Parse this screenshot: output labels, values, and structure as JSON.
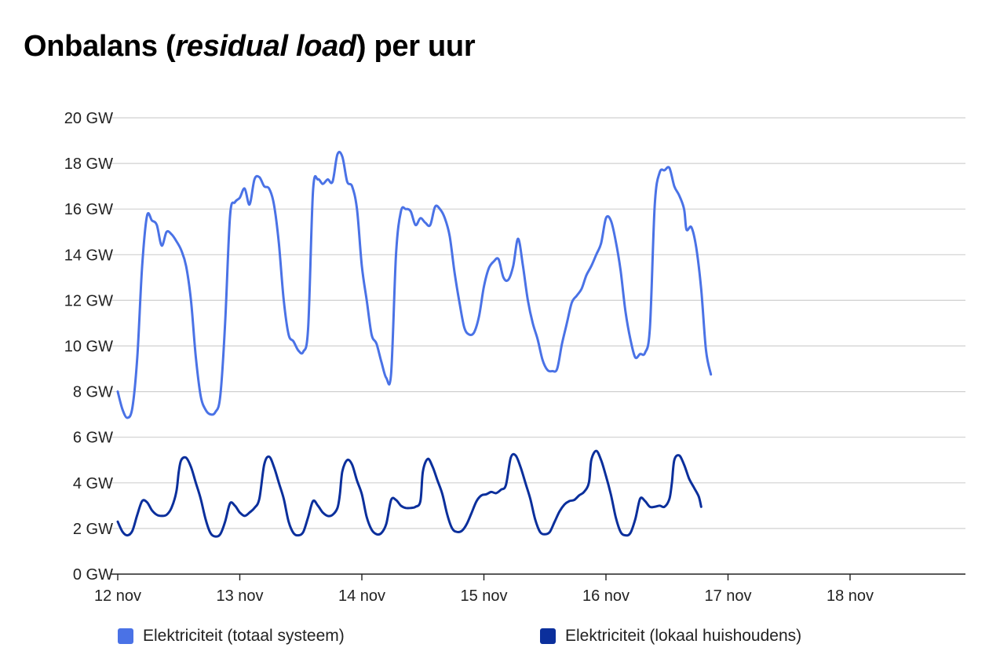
{
  "title": {
    "main": "Onbalans (",
    "italic": "residual load",
    "suffix": ") per uur"
  },
  "colors": {
    "totaal": "#4a72e6",
    "lokaal": "#0b2f9c",
    "grid": "#d0d0d0",
    "axis": "#222222"
  },
  "chart_data": {
    "type": "line",
    "title": "Onbalans (residual load) per uur",
    "xlabel": "",
    "ylabel": "",
    "ylim": [
      0,
      20
    ],
    "y_ticks": [
      0,
      2,
      4,
      6,
      8,
      10,
      12,
      14,
      16,
      18,
      20
    ],
    "y_tick_labels": [
      "0 GW",
      "2 GW",
      "4 GW",
      "6 GW",
      "8 GW",
      "10 GW",
      "12 GW",
      "14 GW",
      "16 GW",
      "18 GW",
      "20 GW"
    ],
    "x_unit": "days since 12 nov 00:00",
    "xlim": [
      0,
      7
    ],
    "x_ticks": [
      0,
      1,
      2,
      3,
      4,
      5,
      6
    ],
    "x_tick_labels": [
      "12 nov",
      "13 nov",
      "14 nov",
      "15 nov",
      "16 nov",
      "17 nov",
      "18 nov"
    ],
    "grid": true,
    "legend_position": "bottom",
    "series": [
      {
        "name": "Elektriciteit (totaal systeem)",
        "color": "#4a72e6",
        "points": [
          [
            0.0,
            8.0
          ],
          [
            0.04,
            7.2
          ],
          [
            0.08,
            6.85
          ],
          [
            0.12,
            7.3
          ],
          [
            0.16,
            9.5
          ],
          [
            0.2,
            13.5
          ],
          [
            0.24,
            15.7
          ],
          [
            0.28,
            15.5
          ],
          [
            0.32,
            15.3
          ],
          [
            0.36,
            14.4
          ],
          [
            0.4,
            15.0
          ],
          [
            0.44,
            14.9
          ],
          [
            0.48,
            14.6
          ],
          [
            0.52,
            14.2
          ],
          [
            0.56,
            13.5
          ],
          [
            0.6,
            12.0
          ],
          [
            0.64,
            9.5
          ],
          [
            0.68,
            7.8
          ],
          [
            0.72,
            7.2
          ],
          [
            0.76,
            7.0
          ],
          [
            0.8,
            7.1
          ],
          [
            0.84,
            7.8
          ],
          [
            0.88,
            11.0
          ],
          [
            0.92,
            15.7
          ],
          [
            0.96,
            16.3
          ],
          [
            1.0,
            16.5
          ],
          [
            1.04,
            16.9
          ],
          [
            1.08,
            16.2
          ],
          [
            1.12,
            17.3
          ],
          [
            1.16,
            17.4
          ],
          [
            1.2,
            17.0
          ],
          [
            1.24,
            16.9
          ],
          [
            1.28,
            16.2
          ],
          [
            1.32,
            14.5
          ],
          [
            1.36,
            12.0
          ],
          [
            1.4,
            10.5
          ],
          [
            1.44,
            10.2
          ],
          [
            1.48,
            9.8
          ],
          [
            1.52,
            9.75
          ],
          [
            1.56,
            10.8
          ],
          [
            1.6,
            16.8
          ],
          [
            1.64,
            17.3
          ],
          [
            1.68,
            17.1
          ],
          [
            1.72,
            17.3
          ],
          [
            1.76,
            17.2
          ],
          [
            1.8,
            18.4
          ],
          [
            1.84,
            18.3
          ],
          [
            1.88,
            17.2
          ],
          [
            1.92,
            17.0
          ],
          [
            1.96,
            16.0
          ],
          [
            2.0,
            13.5
          ],
          [
            2.04,
            12.0
          ],
          [
            2.08,
            10.5
          ],
          [
            2.12,
            10.1
          ],
          [
            2.16,
            9.3
          ],
          [
            2.2,
            8.6
          ],
          [
            2.24,
            8.8
          ],
          [
            2.28,
            14.0
          ],
          [
            2.32,
            15.9
          ],
          [
            2.36,
            16.0
          ],
          [
            2.4,
            15.9
          ],
          [
            2.44,
            15.3
          ],
          [
            2.48,
            15.6
          ],
          [
            2.52,
            15.4
          ],
          [
            2.56,
            15.3
          ],
          [
            2.6,
            16.1
          ],
          [
            2.64,
            16.0
          ],
          [
            2.68,
            15.6
          ],
          [
            2.72,
            14.8
          ],
          [
            2.76,
            13.2
          ],
          [
            2.8,
            11.9
          ],
          [
            2.84,
            10.8
          ],
          [
            2.88,
            10.5
          ],
          [
            2.92,
            10.6
          ],
          [
            2.96,
            11.3
          ],
          [
            3.0,
            12.6
          ],
          [
            3.04,
            13.4
          ],
          [
            3.08,
            13.7
          ],
          [
            3.12,
            13.8
          ],
          [
            3.16,
            13.0
          ],
          [
            3.2,
            12.9
          ],
          [
            3.24,
            13.5
          ],
          [
            3.28,
            14.7
          ],
          [
            3.32,
            13.5
          ],
          [
            3.36,
            12.0
          ],
          [
            3.4,
            11.0
          ],
          [
            3.44,
            10.3
          ],
          [
            3.48,
            9.4
          ],
          [
            3.52,
            8.95
          ],
          [
            3.56,
            8.9
          ],
          [
            3.6,
            9.0
          ],
          [
            3.64,
            10.1
          ],
          [
            3.68,
            11.0
          ],
          [
            3.72,
            11.9
          ],
          [
            3.76,
            12.2
          ],
          [
            3.8,
            12.5
          ],
          [
            3.84,
            13.1
          ],
          [
            3.88,
            13.5
          ],
          [
            3.92,
            14.0
          ],
          [
            3.96,
            14.5
          ],
          [
            4.0,
            15.6
          ],
          [
            4.04,
            15.5
          ],
          [
            4.08,
            14.6
          ],
          [
            4.12,
            13.3
          ],
          [
            4.16,
            11.5
          ],
          [
            4.2,
            10.3
          ],
          [
            4.24,
            9.5
          ],
          [
            4.28,
            9.65
          ],
          [
            4.32,
            9.7
          ],
          [
            4.36,
            10.8
          ],
          [
            4.4,
            16.2
          ],
          [
            4.44,
            17.6
          ],
          [
            4.48,
            17.7
          ],
          [
            4.52,
            17.8
          ],
          [
            4.56,
            17.0
          ],
          [
            4.6,
            16.6
          ],
          [
            4.64,
            16.0
          ],
          [
            4.66,
            15.1
          ],
          [
            4.7,
            15.2
          ],
          [
            4.74,
            14.3
          ],
          [
            4.78,
            12.5
          ],
          [
            4.82,
            9.8
          ],
          [
            4.86,
            8.75
          ]
        ]
      },
      {
        "name": "Elektriciteit (lokaal huishoudens)",
        "color": "#0b2f9c",
        "points": [
          [
            0.0,
            2.3
          ],
          [
            0.04,
            1.85
          ],
          [
            0.08,
            1.7
          ],
          [
            0.12,
            1.9
          ],
          [
            0.16,
            2.6
          ],
          [
            0.2,
            3.2
          ],
          [
            0.24,
            3.15
          ],
          [
            0.28,
            2.8
          ],
          [
            0.32,
            2.6
          ],
          [
            0.36,
            2.55
          ],
          [
            0.4,
            2.6
          ],
          [
            0.44,
            2.9
          ],
          [
            0.48,
            3.6
          ],
          [
            0.5,
            4.5
          ],
          [
            0.52,
            5.0
          ],
          [
            0.56,
            5.1
          ],
          [
            0.6,
            4.7
          ],
          [
            0.64,
            4.0
          ],
          [
            0.68,
            3.3
          ],
          [
            0.72,
            2.4
          ],
          [
            0.76,
            1.8
          ],
          [
            0.8,
            1.65
          ],
          [
            0.84,
            1.75
          ],
          [
            0.88,
            2.3
          ],
          [
            0.92,
            3.1
          ],
          [
            0.96,
            3.0
          ],
          [
            1.0,
            2.7
          ],
          [
            1.04,
            2.55
          ],
          [
            1.08,
            2.7
          ],
          [
            1.12,
            2.9
          ],
          [
            1.16,
            3.3
          ],
          [
            1.2,
            4.8
          ],
          [
            1.24,
            5.15
          ],
          [
            1.28,
            4.7
          ],
          [
            1.32,
            4.0
          ],
          [
            1.36,
            3.3
          ],
          [
            1.4,
            2.3
          ],
          [
            1.44,
            1.8
          ],
          [
            1.48,
            1.7
          ],
          [
            1.52,
            1.85
          ],
          [
            1.56,
            2.5
          ],
          [
            1.6,
            3.2
          ],
          [
            1.64,
            3.0
          ],
          [
            1.68,
            2.7
          ],
          [
            1.72,
            2.55
          ],
          [
            1.76,
            2.6
          ],
          [
            1.8,
            2.9
          ],
          [
            1.82,
            3.5
          ],
          [
            1.84,
            4.5
          ],
          [
            1.88,
            5.0
          ],
          [
            1.92,
            4.8
          ],
          [
            1.96,
            4.1
          ],
          [
            2.0,
            3.5
          ],
          [
            2.04,
            2.5
          ],
          [
            2.08,
            1.95
          ],
          [
            2.12,
            1.75
          ],
          [
            2.16,
            1.8
          ],
          [
            2.2,
            2.2
          ],
          [
            2.24,
            3.25
          ],
          [
            2.28,
            3.25
          ],
          [
            2.32,
            3.0
          ],
          [
            2.36,
            2.9
          ],
          [
            2.4,
            2.9
          ],
          [
            2.44,
            2.95
          ],
          [
            2.48,
            3.2
          ],
          [
            2.5,
            4.5
          ],
          [
            2.54,
            5.05
          ],
          [
            2.58,
            4.7
          ],
          [
            2.62,
            4.1
          ],
          [
            2.66,
            3.5
          ],
          [
            2.7,
            2.6
          ],
          [
            2.74,
            2.0
          ],
          [
            2.78,
            1.85
          ],
          [
            2.82,
            1.9
          ],
          [
            2.86,
            2.2
          ],
          [
            2.9,
            2.7
          ],
          [
            2.94,
            3.2
          ],
          [
            2.98,
            3.45
          ],
          [
            3.02,
            3.5
          ],
          [
            3.06,
            3.6
          ],
          [
            3.1,
            3.55
          ],
          [
            3.14,
            3.7
          ],
          [
            3.18,
            3.9
          ],
          [
            3.22,
            5.1
          ],
          [
            3.26,
            5.2
          ],
          [
            3.3,
            4.7
          ],
          [
            3.34,
            4.0
          ],
          [
            3.38,
            3.3
          ],
          [
            3.42,
            2.4
          ],
          [
            3.46,
            1.85
          ],
          [
            3.5,
            1.75
          ],
          [
            3.54,
            1.85
          ],
          [
            3.58,
            2.3
          ],
          [
            3.62,
            2.75
          ],
          [
            3.66,
            3.05
          ],
          [
            3.7,
            3.2
          ],
          [
            3.74,
            3.25
          ],
          [
            3.78,
            3.45
          ],
          [
            3.82,
            3.6
          ],
          [
            3.86,
            4.0
          ],
          [
            3.88,
            5.0
          ],
          [
            3.92,
            5.4
          ],
          [
            3.96,
            5.0
          ],
          [
            4.0,
            4.3
          ],
          [
            4.04,
            3.5
          ],
          [
            4.08,
            2.5
          ],
          [
            4.12,
            1.85
          ],
          [
            4.16,
            1.7
          ],
          [
            4.2,
            1.8
          ],
          [
            4.24,
            2.4
          ],
          [
            4.28,
            3.3
          ],
          [
            4.32,
            3.2
          ],
          [
            4.36,
            2.95
          ],
          [
            4.4,
            2.95
          ],
          [
            4.44,
            3.0
          ],
          [
            4.48,
            2.95
          ],
          [
            4.52,
            3.3
          ],
          [
            4.54,
            4.0
          ],
          [
            4.56,
            5.0
          ],
          [
            4.6,
            5.2
          ],
          [
            4.64,
            4.8
          ],
          [
            4.68,
            4.2
          ],
          [
            4.72,
            3.8
          ],
          [
            4.76,
            3.4
          ],
          [
            4.78,
            2.95
          ]
        ]
      }
    ]
  }
}
